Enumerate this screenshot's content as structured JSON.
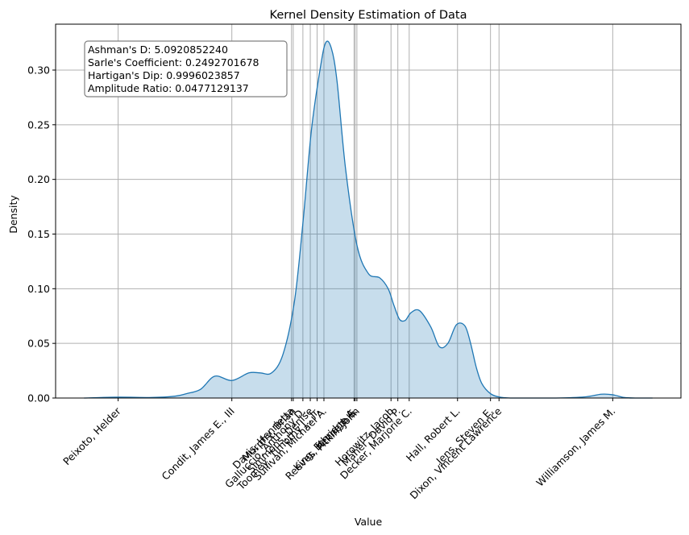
{
  "chart_data": {
    "type": "area",
    "title": "Kernel Density Estimation of Data",
    "xlabel": "Value",
    "ylabel": "Density",
    "xlim": [
      -2.3,
      8.7
    ],
    "ylim": [
      0,
      0.342
    ],
    "yticks": [
      0.0,
      0.05,
      0.1,
      0.15,
      0.2,
      0.25,
      0.3
    ],
    "ytick_labels": [
      "0.00",
      "0.05",
      "0.10",
      "0.15",
      "0.20",
      "0.25",
      "0.30"
    ],
    "grid": true,
    "colors": {
      "line": "#1f77b4",
      "fill": "#1f77b4",
      "grid": "#b0b0b0",
      "box_edge": "#808080"
    },
    "curve": {
      "x": [
        -1.8,
        -1.2,
        -0.6,
        -0.2,
        0.0,
        0.25,
        0.5,
        0.8,
        1.1,
        1.3,
        1.5,
        1.7,
        1.9,
        2.05,
        2.2,
        2.35,
        2.45,
        2.55,
        2.65,
        2.8,
        3.0,
        3.2,
        3.4,
        3.55,
        3.65,
        3.75,
        3.85,
        3.95,
        4.1,
        4.3,
        4.45,
        4.6,
        4.75,
        4.9,
        5.0,
        5.1,
        5.2,
        5.35,
        5.5,
        5.7,
        6.0,
        6.5,
        7.0,
        7.3,
        7.5,
        7.7,
        7.9,
        8.2
      ],
      "y": [
        0.0,
        0.0008,
        0.0005,
        0.0017,
        0.004,
        0.008,
        0.02,
        0.016,
        0.023,
        0.023,
        0.023,
        0.04,
        0.088,
        0.16,
        0.245,
        0.3,
        0.325,
        0.32,
        0.29,
        0.21,
        0.14,
        0.114,
        0.11,
        0.1,
        0.085,
        0.072,
        0.071,
        0.078,
        0.08,
        0.065,
        0.047,
        0.05,
        0.067,
        0.066,
        0.05,
        0.028,
        0.013,
        0.004,
        0.001,
        0.0,
        0.0,
        0.0,
        0.001,
        0.0035,
        0.003,
        0.0005,
        0.0,
        0.0
      ]
    },
    "markers": [
      {
        "name": "Peixoto, Helder",
        "value": -1.2
      },
      {
        "name": "Condit, James E., III",
        "value": 0.8
      },
      {
        "name": "Davis, Henrietta",
        "value": 1.85
      },
      {
        "name": "Murphy, Brian",
        "value": 1.88
      },
      {
        "name": "Galluccio, Anthony D.",
        "value": 2.05
      },
      {
        "name": "Simmons, Denise",
        "value": 2.18
      },
      {
        "name": "Toomey, Timothy J., Jr.",
        "value": 2.3
      },
      {
        "name": "Sullivan, Michael A.",
        "value": 2.42
      },
      {
        "name": "King, Ethridge A.",
        "value": 2.95
      },
      {
        "name": "Reeves, Kenneth E.",
        "value": 2.97
      },
      {
        "name": "Pitkin, John",
        "value": 3.0
      },
      {
        "name": "Horowitz, Jacob",
        "value": 3.6
      },
      {
        "name": "Maher, David P.",
        "value": 3.72
      },
      {
        "name": "Decker, Marjorie C.",
        "value": 3.92
      },
      {
        "name": "Hall, Robert L.",
        "value": 4.77
      },
      {
        "name": "Jens, Steven E.",
        "value": 5.35
      },
      {
        "name": "Dixon, Vincent Lawrence",
        "value": 5.5
      },
      {
        "name": "Williamson, James M.",
        "value": 7.5
      }
    ],
    "stats_lines": [
      "Ashman's D: 5.0920852240",
      "Sarle's Coefficient: 0.2492701678",
      "Hartigan's Dip: 0.9996023857",
      "Amplitude Ratio: 0.0477129137"
    ],
    "stats_box_position": "top-left"
  }
}
